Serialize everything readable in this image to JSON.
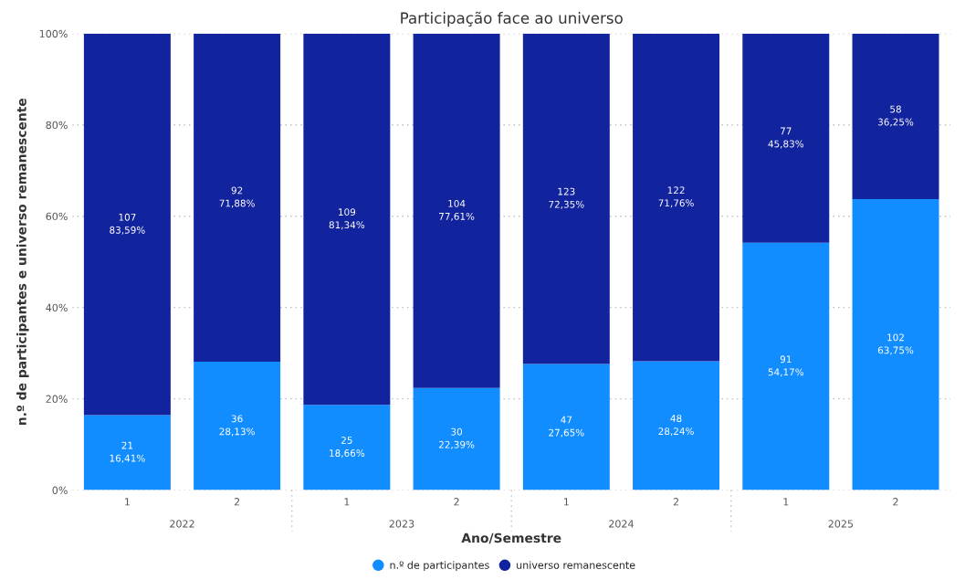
{
  "chart_data": {
    "type": "bar",
    "title": "Participação face ao universo",
    "xlabel": "Ano/Semestre",
    "ylabel": "n.º de participantes e universo remanescente",
    "categories": [
      "1",
      "2",
      "1",
      "2",
      "1",
      "2",
      "1",
      "2"
    ],
    "annotations": [
      "2022",
      "2023",
      "2024",
      "2025"
    ],
    "stacked": true,
    "series": [
      {
        "name": "n.º de participantes",
        "color": "#118dff",
        "values": [
          16.41,
          28.13,
          18.66,
          22.39,
          27.65,
          28.24,
          54.17,
          63.75
        ],
        "value_labels": [
          "21\n16,41%",
          "36\n28,13%",
          "25\n18,66%",
          "30\n22,39%",
          "47\n27,65%",
          "48\n28,24%",
          "91\n54,17%",
          "102\n63,75%"
        ]
      },
      {
        "name": "universo remanescente",
        "color": "#12239e",
        "values": [
          83.59,
          71.88,
          81.34,
          77.61,
          72.35,
          71.76,
          45.83,
          36.25
        ],
        "value_labels": [
          "107\n83,59%",
          "92\n71,88%",
          "109\n81,34%",
          "104\n77,61%",
          "123\n72,35%",
          "122\n71,76%",
          "77\n45,83%",
          "58\n36,25%"
        ]
      }
    ],
    "ylim": [
      0,
      100
    ],
    "yticks": [
      {
        "value": 0,
        "label": "0%"
      },
      {
        "value": 20,
        "label": "20%"
      },
      {
        "value": 40,
        "label": "40%"
      },
      {
        "value": 60,
        "label": "60%"
      },
      {
        "value": 80,
        "label": "80%"
      },
      {
        "value": 100,
        "label": "100%"
      }
    ],
    "grid": "y",
    "legend": "bottom"
  }
}
